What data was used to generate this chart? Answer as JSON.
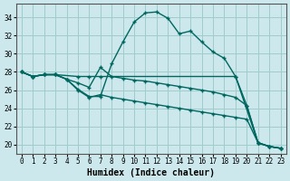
{
  "xlabel": "Humidex (Indice chaleur)",
  "bg_color": "#cce8ec",
  "grid_color": "#a0cccc",
  "line_color": "#006660",
  "xlim": [
    -0.5,
    23.5
  ],
  "ylim": [
    19.0,
    35.5
  ],
  "yticks": [
    20,
    22,
    24,
    26,
    28,
    30,
    32,
    34
  ],
  "xtick_labels": [
    "0",
    "1",
    "2",
    "3",
    "4",
    "5",
    "6",
    "7",
    "8",
    "9",
    "10",
    "11",
    "12",
    "13",
    "14",
    "15",
    "16",
    "17",
    "18",
    "19",
    "20",
    "21",
    "22",
    "23"
  ],
  "curve1_x": [
    0,
    1,
    2,
    3,
    4,
    5,
    6,
    7,
    8,
    9,
    10,
    11,
    12,
    13,
    14,
    15,
    16,
    17,
    18,
    19,
    20,
    21,
    22,
    23
  ],
  "curve1_y": [
    28.0,
    27.5,
    27.7,
    27.7,
    27.2,
    26.1,
    25.3,
    25.3,
    28.9,
    31.3,
    33.5,
    34.5,
    34.6,
    33.9,
    32.2,
    32.5,
    31.3,
    30.2,
    29.5,
    27.5,
    24.3,
    20.2,
    19.8,
    19.6
  ],
  "curve2_x": [
    0,
    1,
    2,
    3,
    5,
    6,
    7,
    19,
    21,
    22,
    23
  ],
  "curve2_y": [
    28.0,
    27.5,
    27.7,
    27.7,
    27.5,
    27.5,
    27.5,
    27.5,
    20.2,
    19.8,
    19.6
  ],
  "curve3_x": [
    0,
    1,
    2,
    3,
    4,
    5,
    6,
    7,
    8,
    9,
    10,
    11,
    12,
    13,
    14,
    15,
    16,
    17,
    18,
    19,
    20,
    21,
    22,
    23
  ],
  "curve3_y": [
    28.0,
    27.5,
    27.7,
    27.7,
    27.2,
    26.8,
    26.3,
    28.5,
    27.5,
    27.3,
    27.1,
    27.0,
    26.8,
    26.6,
    26.4,
    26.2,
    26.0,
    25.8,
    25.5,
    25.2,
    24.3,
    20.2,
    19.8,
    19.6
  ],
  "curve4_x": [
    0,
    1,
    2,
    3,
    4,
    5,
    6,
    7,
    8,
    9,
    10,
    11,
    12,
    13,
    14,
    15,
    16,
    17,
    18,
    19,
    20,
    21,
    22,
    23
  ],
  "curve4_y": [
    28.0,
    27.5,
    27.7,
    27.7,
    27.2,
    26.0,
    25.2,
    25.5,
    25.2,
    25.0,
    24.8,
    24.6,
    24.4,
    24.2,
    24.0,
    23.8,
    23.6,
    23.4,
    23.2,
    23.0,
    22.8,
    20.2,
    19.8,
    19.6
  ]
}
